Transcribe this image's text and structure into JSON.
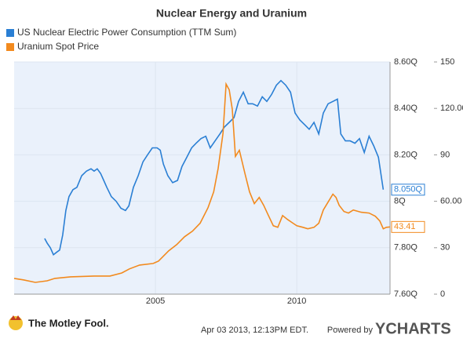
{
  "chart_data": {
    "type": "line",
    "title": "Nuclear Energy and Uranium",
    "xlim": [
      2000,
      2013.3
    ],
    "xticks": [
      2005,
      2010
    ],
    "ylim": [
      7.6,
      8.6
    ],
    "yticks": [
      {
        "value": 7.6,
        "label": "7.60Q"
      },
      {
        "value": 7.8,
        "label": "7.80Q"
      },
      {
        "value": 8,
        "label": "8Q"
      },
      {
        "value": 8.2,
        "label": "8.20Q"
      },
      {
        "value": 8.4,
        "label": "8.40Q"
      },
      {
        "value": 8.6,
        "label": "8.60Q"
      }
    ],
    "y2lim": [
      0,
      150
    ],
    "y2ticks": [
      0,
      30,
      {
        "value": 60,
        "label": "60.00"
      },
      90,
      {
        "value": 120,
        "label": "120.00"
      },
      150
    ],
    "grid": true,
    "series": [
      {
        "name": "US Nuclear Electric Power Consumption (TTM Sum)",
        "color": "#2a7fd4",
        "axis": "y",
        "end_label": {
          "value": 8.05,
          "label": "8.050Q"
        },
        "x": [
          2001.08,
          2001.17,
          2001.28,
          2001.39,
          2001.5,
          2001.61,
          2001.72,
          2001.83,
          2001.94,
          2002.08,
          2002.22,
          2002.39,
          2002.56,
          2002.72,
          2002.83,
          2002.94,
          2003.06,
          2003.17,
          2003.28,
          2003.44,
          2003.61,
          2003.78,
          2003.94,
          2004.06,
          2004.22,
          2004.39,
          2004.56,
          2004.72,
          2004.89,
          2005.06,
          2005.17,
          2005.28,
          2005.44,
          2005.61,
          2005.78,
          2005.94,
          2006.11,
          2006.28,
          2006.44,
          2006.61,
          2006.78,
          2006.94,
          2007.11,
          2007.28,
          2007.44,
          2007.61,
          2007.78,
          2007.94,
          2008.11,
          2008.28,
          2008.44,
          2008.61,
          2008.78,
          2008.94,
          2009.11,
          2009.28,
          2009.44,
          2009.61,
          2009.78,
          2009.94,
          2010.11,
          2010.28,
          2010.44,
          2010.61,
          2010.78,
          2010.94,
          2011.11,
          2011.28,
          2011.44,
          2011.56,
          2011.72,
          2011.89,
          2012.06,
          2012.22,
          2012.39,
          2012.56,
          2012.72,
          2012.89,
          2013.06
        ],
        "values": [
          7.84,
          7.82,
          7.8,
          7.77,
          7.78,
          7.79,
          7.855,
          7.96,
          8.02,
          8.05,
          8.06,
          8.11,
          8.13,
          8.14,
          8.13,
          8.14,
          8.12,
          8.09,
          8.06,
          8.02,
          8.0,
          7.97,
          7.96,
          7.98,
          8.06,
          8.11,
          8.17,
          8.2,
          8.23,
          8.23,
          8.22,
          8.16,
          8.11,
          8.08,
          8.09,
          8.15,
          8.19,
          8.23,
          8.25,
          8.27,
          8.28,
          8.23,
          8.26,
          8.29,
          8.32,
          8.34,
          8.36,
          8.43,
          8.47,
          8.42,
          8.42,
          8.41,
          8.45,
          8.43,
          8.46,
          8.5,
          8.52,
          8.5,
          8.47,
          8.38,
          8.35,
          8.33,
          8.31,
          8.34,
          8.29,
          8.38,
          8.42,
          8.43,
          8.44,
          8.29,
          8.26,
          8.26,
          8.25,
          8.27,
          8.21,
          8.28,
          8.24,
          8.19,
          8.05
        ]
      },
      {
        "name": "Uranium Spot Price",
        "color": "#f28a1e",
        "axis": "y2",
        "end_label": {
          "value": 43.41,
          "label": "43.41"
        },
        "x": [
          2000.0,
          2000.33,
          2000.75,
          2001.17,
          2001.44,
          2002.0,
          2002.83,
          2003.39,
          2003.81,
          2004.08,
          2004.44,
          2004.92,
          2005.11,
          2005.47,
          2005.75,
          2006.03,
          2006.31,
          2006.58,
          2006.86,
          2007.06,
          2007.22,
          2007.39,
          2007.5,
          2007.61,
          2007.72,
          2007.83,
          2007.97,
          2008.17,
          2008.33,
          2008.5,
          2008.67,
          2008.83,
          2009.0,
          2009.17,
          2009.33,
          2009.5,
          2009.67,
          2009.83,
          2010.0,
          2010.22,
          2010.39,
          2010.61,
          2010.78,
          2010.94,
          2011.11,
          2011.28,
          2011.39,
          2011.5,
          2011.67,
          2011.83,
          2012.0,
          2012.28,
          2012.56,
          2012.78,
          2012.94,
          2013.06,
          2013.17,
          2013.3
        ],
        "values": [
          10.2,
          9.2,
          7.6,
          8.6,
          10.2,
          11.2,
          11.7,
          11.7,
          13.7,
          16.3,
          18.8,
          19.8,
          21.4,
          28,
          32,
          37.1,
          40.7,
          45.8,
          55.9,
          66.1,
          81.3,
          104,
          135.7,
          132,
          119.5,
          89,
          93,
          77.8,
          66.1,
          58.5,
          62.5,
          57.4,
          50.8,
          44.2,
          43.2,
          50.8,
          48.3,
          46.3,
          44.2,
          43.2,
          42.2,
          43.2,
          45.8,
          54.4,
          59.5,
          64.6,
          62.5,
          57.4,
          53.4,
          52.4,
          54.4,
          52.9,
          52.4,
          50.3,
          47.3,
          42.2,
          43.2,
          43.41
        ]
      }
    ]
  },
  "footer": {
    "logo": "The Motley Fool.",
    "timestamp": "Apr 03 2013, 12:13PM EDT.",
    "powered": "Powered by",
    "brand": "YCHARTS"
  }
}
